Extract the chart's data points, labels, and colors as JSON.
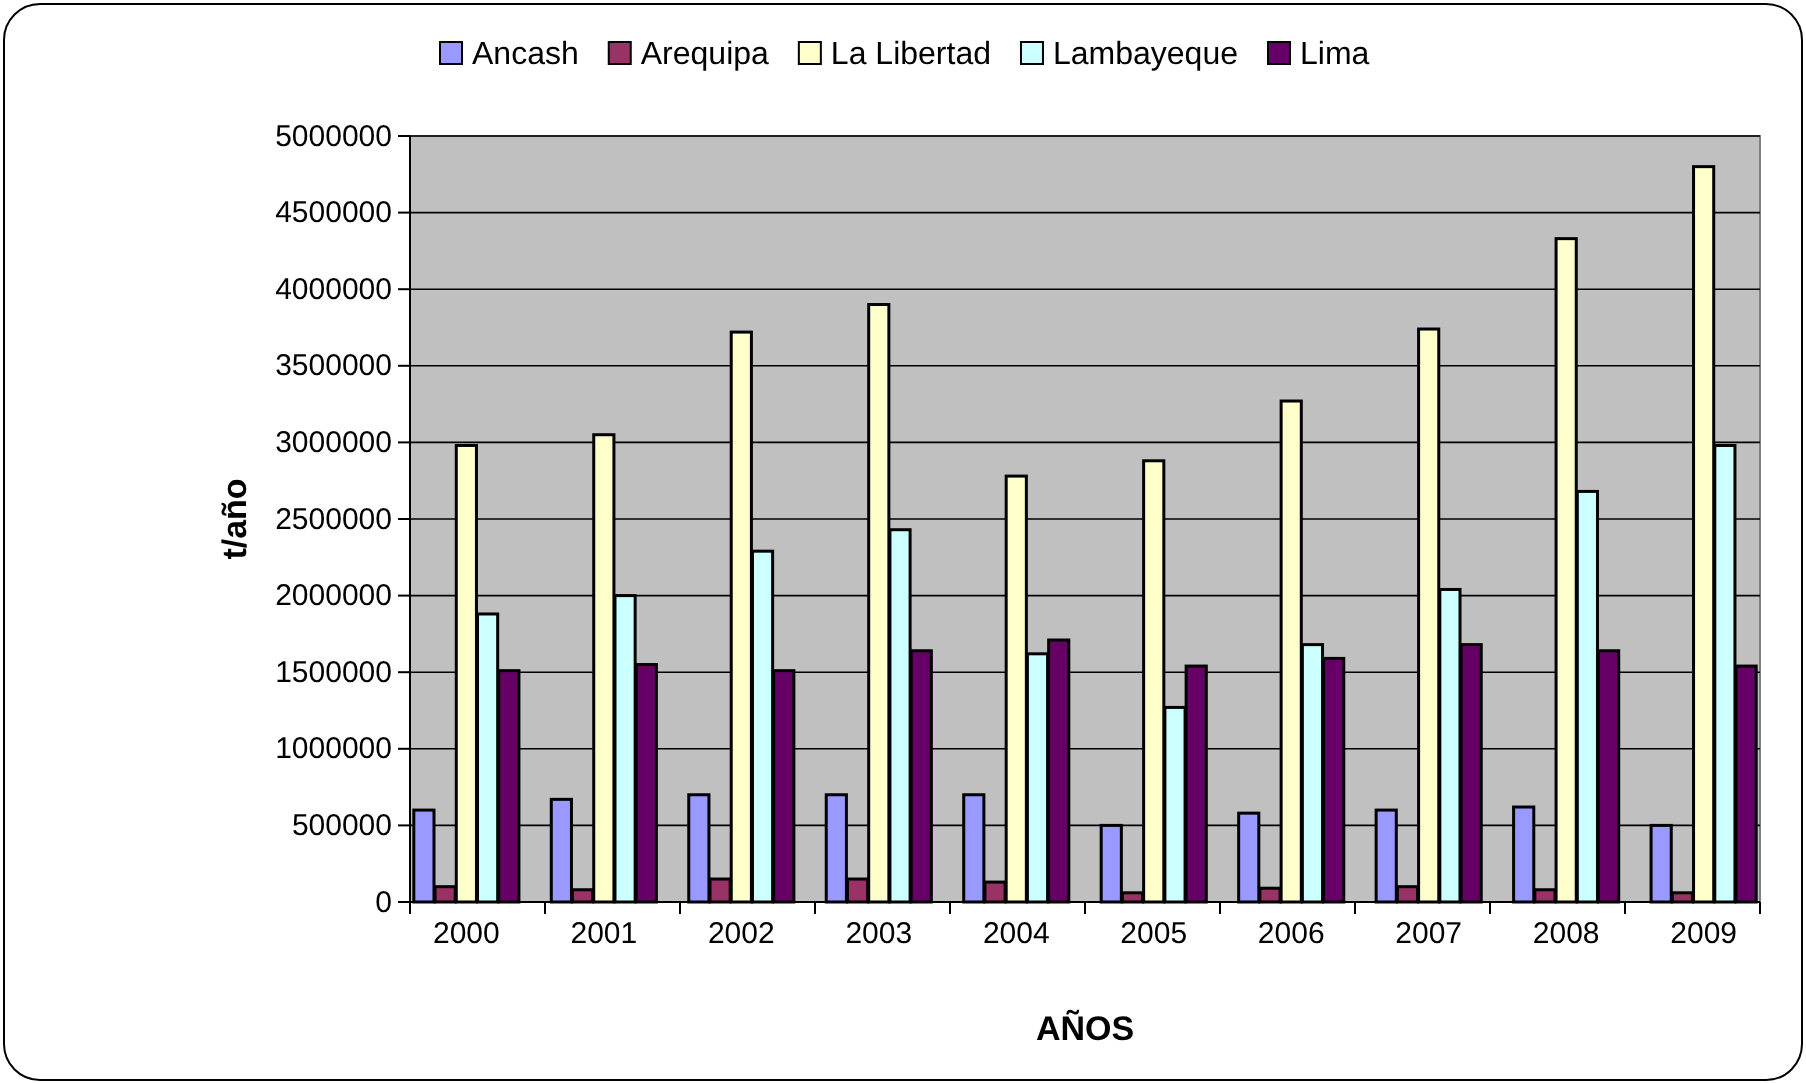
{
  "chart_data": {
    "type": "bar",
    "xlabel": "AÑOS",
    "ylabel": "t/año",
    "categories": [
      "2000",
      "2001",
      "2002",
      "2003",
      "2004",
      "2005",
      "2006",
      "2007",
      "2008",
      "2009"
    ],
    "series": [
      {
        "name": "Ancash",
        "color": "#9999ff",
        "values": [
          600000,
          670000,
          700000,
          700000,
          700000,
          500000,
          580000,
          600000,
          620000,
          500000
        ]
      },
      {
        "name": "Arequipa",
        "color": "#993366",
        "values": [
          100000,
          80000,
          150000,
          150000,
          130000,
          60000,
          90000,
          100000,
          80000,
          60000
        ]
      },
      {
        "name": "La Libertad",
        "color": "#ffffcc",
        "values": [
          2980000,
          3050000,
          3720000,
          3900000,
          2780000,
          2880000,
          3270000,
          3740000,
          4330000,
          4800000
        ]
      },
      {
        "name": "Lambayeque",
        "color": "#ccffff",
        "values": [
          1880000,
          2000000,
          2290000,
          2430000,
          1620000,
          1270000,
          1680000,
          2040000,
          2680000,
          2980000
        ]
      },
      {
        "name": "Lima",
        "color": "#660066",
        "values": [
          1510000,
          1550000,
          1510000,
          1640000,
          1710000,
          1540000,
          1590000,
          1680000,
          1640000,
          1540000
        ]
      }
    ],
    "ylim": [
      0,
      5000000
    ],
    "yticks": [
      0,
      500000,
      1000000,
      1500000,
      2000000,
      2500000,
      3000000,
      3500000,
      4000000,
      4500000,
      5000000
    ],
    "grid": "y",
    "legend": "top"
  }
}
